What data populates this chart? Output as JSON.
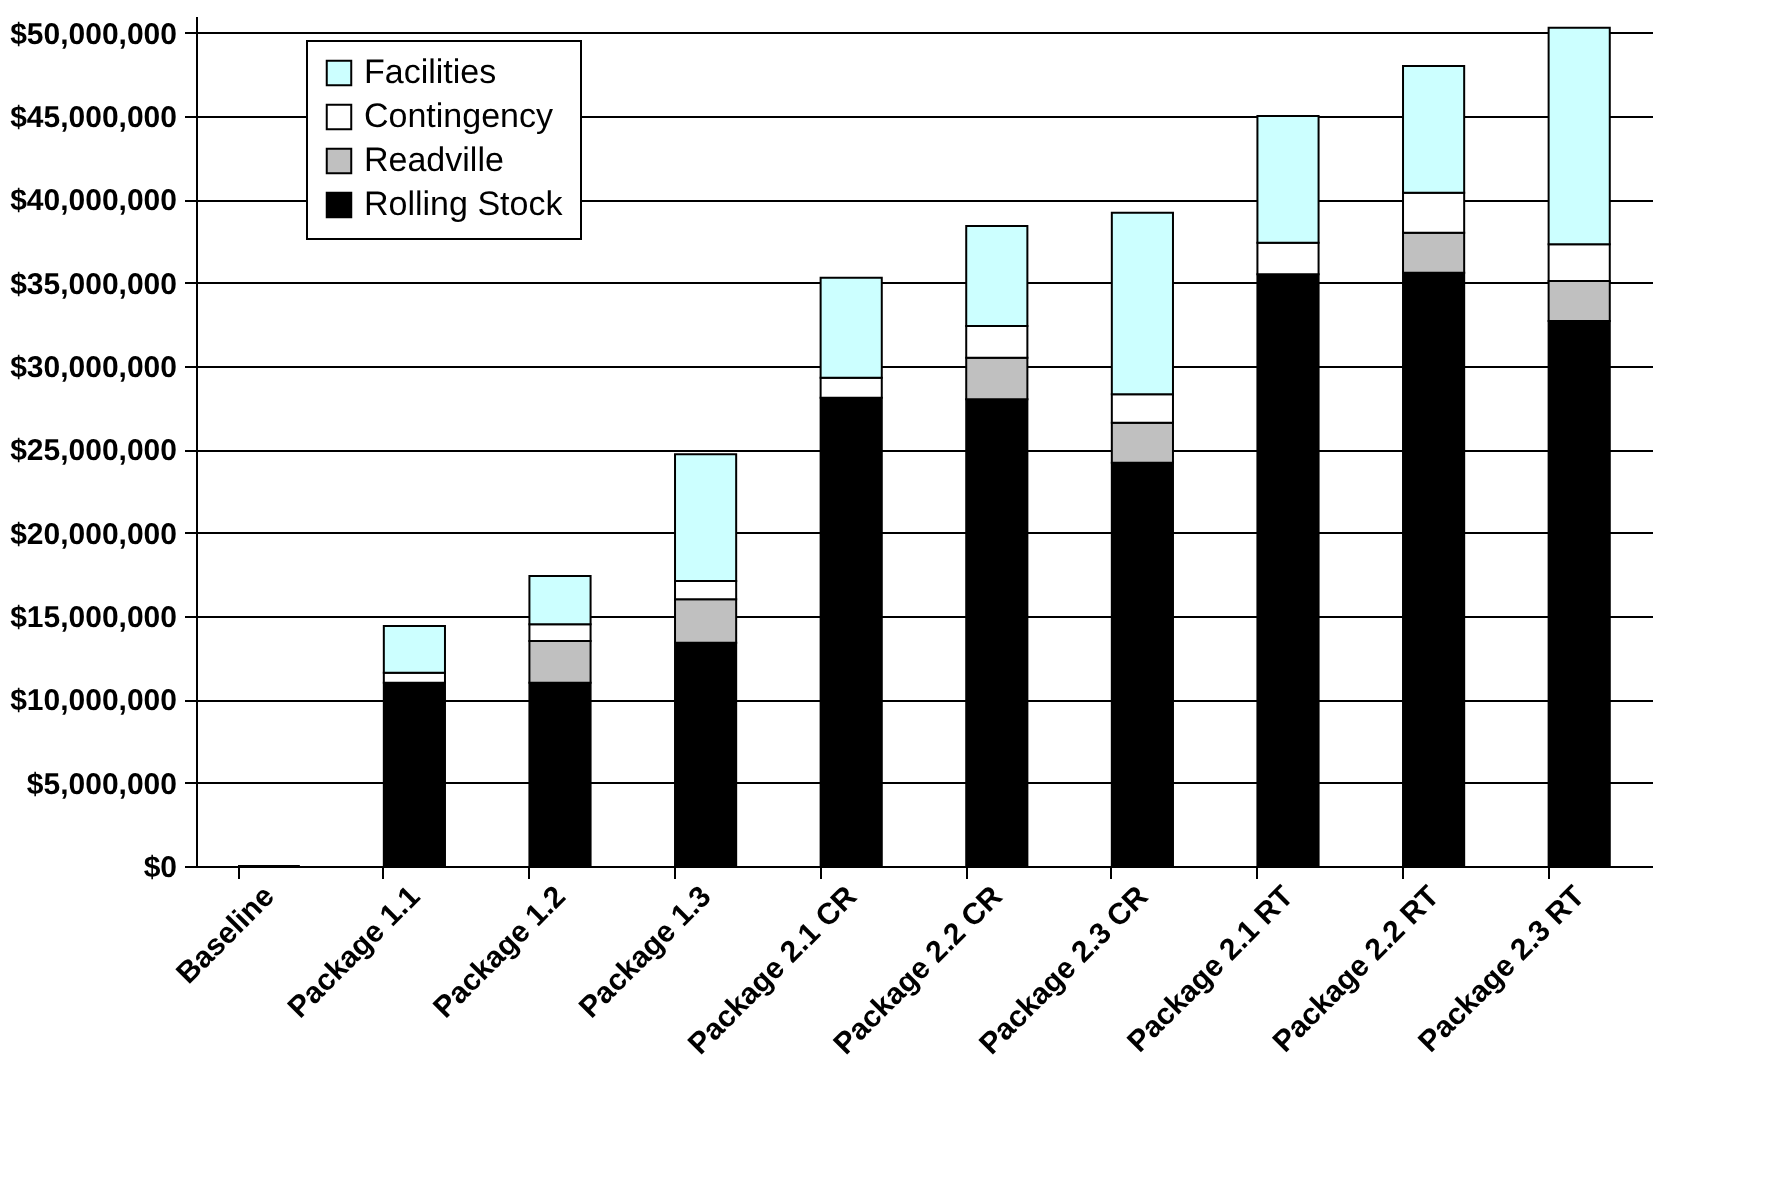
{
  "chart_data": {
    "type": "bar",
    "stacked": true,
    "categories": [
      "Baseline",
      "Package 1.1",
      "Package 1.2",
      "Package 1.3",
      "Package 2.1 CR",
      "Package 2.2 CR",
      "Package 2.3 CR",
      "Package 2.1 RT",
      "Package 2.2 RT",
      "Package 2.3 RT"
    ],
    "series": [
      {
        "name": "Rolling Stock",
        "color": "#000000",
        "values": [
          0,
          11000000,
          11000000,
          13400000,
          28100000,
          28000000,
          24200000,
          35500000,
          35600000,
          32700000
        ]
      },
      {
        "name": "Readville",
        "color": "#c0c0c0",
        "values": [
          0,
          0,
          2500000,
          2600000,
          0,
          2500000,
          2400000,
          0,
          2400000,
          2400000
        ]
      },
      {
        "name": "Contingency",
        "color": "#ffffff",
        "values": [
          0,
          600000,
          1000000,
          1100000,
          1200000,
          1900000,
          1700000,
          1900000,
          2400000,
          2200000
        ]
      },
      {
        "name": "Facilities",
        "color": "#ccffff",
        "values": [
          0,
          2800000,
          2900000,
          7600000,
          6000000,
          6000000,
          10900000,
          7600000,
          7600000,
          13000000
        ]
      }
    ],
    "ylim": [
      0,
      51000000
    ],
    "yticks": [
      {
        "value": 0,
        "label": "$0"
      },
      {
        "value": 5000000,
        "label": "$5,000,000"
      },
      {
        "value": 10000000,
        "label": "$10,000,000"
      },
      {
        "value": 15000000,
        "label": "$15,000,000"
      },
      {
        "value": 20000000,
        "label": "$20,000,000"
      },
      {
        "value": 25000000,
        "label": "$25,000,000"
      },
      {
        "value": 30000000,
        "label": "$30,000,000"
      },
      {
        "value": 35000000,
        "label": "$35,000,000"
      },
      {
        "value": 40000000,
        "label": "$40,000,000"
      },
      {
        "value": 45000000,
        "label": "$45,000,000"
      },
      {
        "value": 50000000,
        "label": "$50,000,000"
      }
    ],
    "grid": "y",
    "legend": "top left"
  }
}
